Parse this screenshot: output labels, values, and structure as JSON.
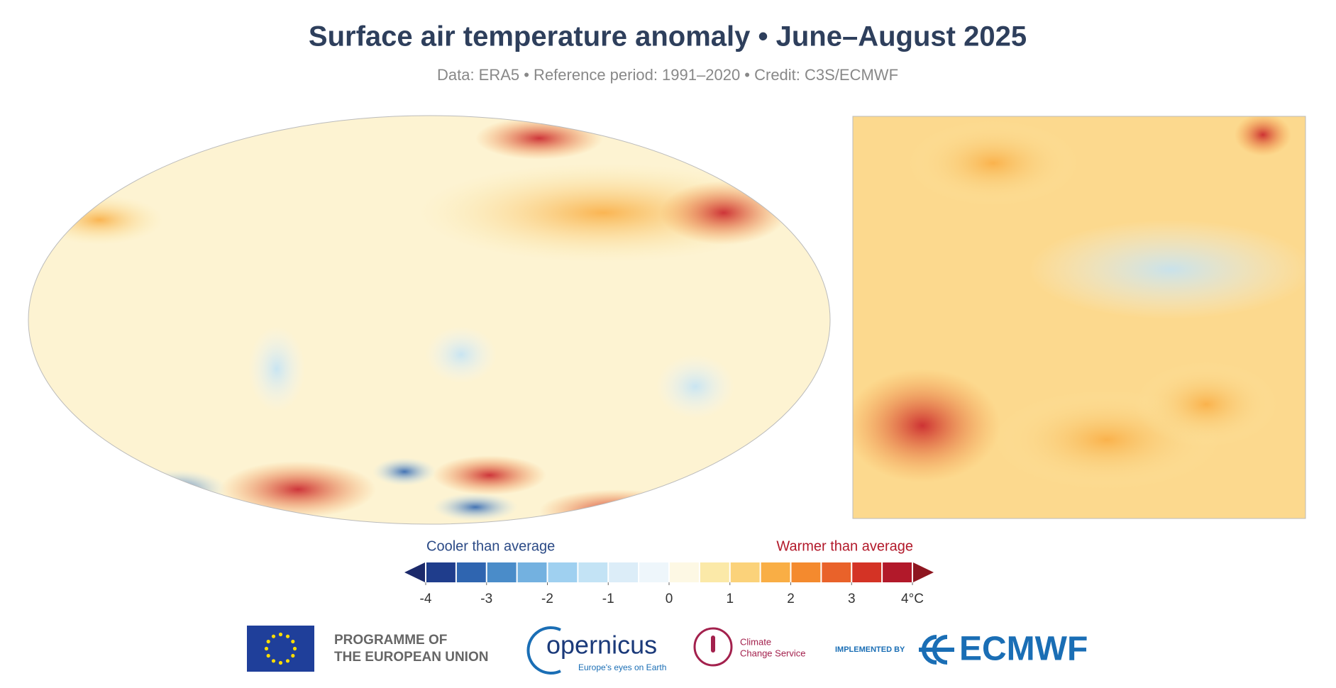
{
  "header": {
    "title": "Surface air temperature anomaly • June–August 2025",
    "subtitle": "Data: ERA5 • Reference period: 1991–2020 • Credit: C3S/ECMWF"
  },
  "legend": {
    "cooler_label": "Cooler than average",
    "warmer_label": "Warmer than average",
    "ticks": [
      -4,
      -3,
      -2,
      -1,
      0,
      1,
      2,
      3,
      {
        "value": 4,
        "label": "4°C"
      }
    ],
    "low_color": "#1c2a6b",
    "high_color": "#8e1620",
    "colors": [
      "#1f3d8c",
      "#2f65b0",
      "#4a8cc9",
      "#73b1e0",
      "#9fd0f0",
      "#c3e3f5",
      "#dcedf8",
      "#eef6fb",
      "#fdf8e4",
      "#fbe9a8",
      "#fbd27a",
      "#f9ae45",
      "#f48a2e",
      "#e9622a",
      "#d43325",
      "#b2192a"
    ]
  },
  "logos": {
    "eu_line1": "PROGRAMME OF",
    "eu_line2": "THE EUROPEAN UNION",
    "copernicus": "opernicus",
    "copernicus_tagline": "Europe's eyes on Earth",
    "c3s_line1": "Climate",
    "c3s_line2": "Change Service",
    "implemented_by": "IMPLEMENTED BY",
    "ecmwf": "ECMWF"
  }
}
